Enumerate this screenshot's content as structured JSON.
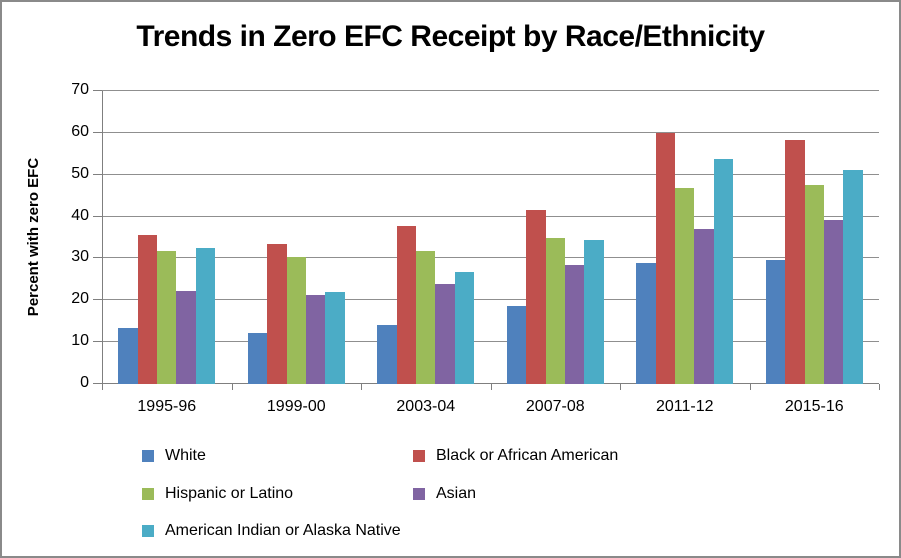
{
  "window": {
    "background": "#ffffff",
    "border_color": "#8a8a8a"
  },
  "chart_data": {
    "type": "bar",
    "title": "Trends in Zero EFC Receipt by Race/Ethnicity",
    "xlabel": "",
    "ylabel": "Percent with zero EFC",
    "ylim": [
      0,
      70
    ],
    "yticks": [
      0,
      10,
      20,
      30,
      40,
      50,
      60,
      70
    ],
    "grid": true,
    "grid_color": "#8f8f8f",
    "axis_color": "#7f7f7f",
    "text_color": "#000000",
    "legend_position": "bottom",
    "categories": [
      "1995-96",
      "1999-00",
      "2003-04",
      "2007-08",
      "2011-12",
      "2015-16"
    ],
    "series": [
      {
        "name": "White",
        "color": "#4f81bd",
        "values": [
          13.3,
          12.1,
          14.2,
          18.7,
          28.9,
          29.6
        ]
      },
      {
        "name": "Black or African American",
        "color": "#c0504d",
        "values": [
          35.7,
          33.5,
          37.7,
          41.5,
          60.0,
          58.3
        ]
      },
      {
        "name": "Hispanic or Latino",
        "color": "#9bbb59",
        "values": [
          31.8,
          30.3,
          31.8,
          34.8,
          46.8,
          47.5
        ]
      },
      {
        "name": "Asian",
        "color": "#8064a2",
        "values": [
          22.3,
          21.2,
          23.9,
          28.4,
          37.0,
          39.2
        ]
      },
      {
        "name": "American Indian or Alaska Native",
        "color": "#4bacc6",
        "values": [
          32.5,
          21.9,
          26.8,
          34.5,
          53.8,
          51.1
        ]
      }
    ]
  }
}
